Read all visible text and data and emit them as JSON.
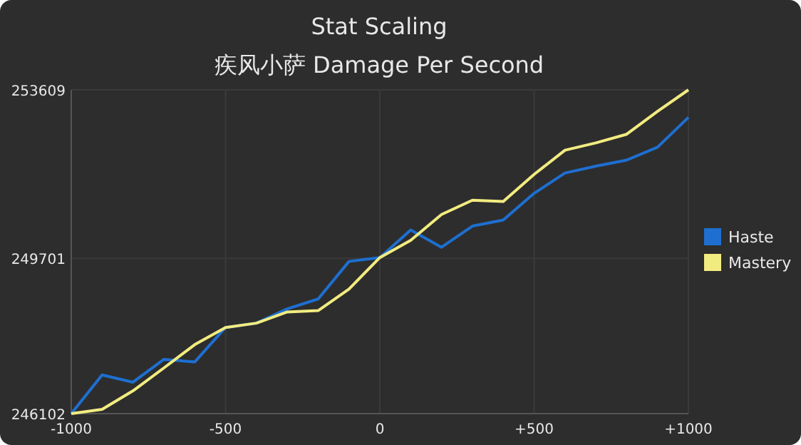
{
  "chart_data": {
    "type": "line",
    "title": "Stat Scaling",
    "subtitle": "疾风小萨 Damage Per Second",
    "x": [
      -1000,
      -900,
      -800,
      -700,
      -600,
      -500,
      -400,
      -300,
      -200,
      -100,
      0,
      100,
      200,
      300,
      400,
      500,
      600,
      700,
      800,
      900,
      1000
    ],
    "series": [
      {
        "name": "Haste",
        "color": "#1e6fd0",
        "values": [
          246102,
          247000,
          246830,
          247360,
          247300,
          248100,
          248200,
          248530,
          248760,
          249630,
          249720,
          250360,
          249960,
          250450,
          250590,
          251210,
          251680,
          251840,
          251980,
          252280,
          252970
        ]
      },
      {
        "name": "Mastery",
        "color": "#f2ec80",
        "values": [
          246102,
          246200,
          246630,
          247160,
          247700,
          248100,
          248200,
          248460,
          248490,
          248990,
          249720,
          250120,
          250720,
          251050,
          251020,
          251650,
          252210,
          252380,
          252580,
          253110,
          253609
        ]
      }
    ],
    "xlim": [
      -1000,
      1000
    ],
    "xticks": [
      -1000,
      -500,
      0,
      {
        "value": 500,
        "label": "+500"
      },
      {
        "value": 1000,
        "label": "+1000"
      }
    ],
    "ylim": [
      246102,
      253609
    ],
    "yticks": [
      246102,
      249701,
      253609
    ],
    "grid": true,
    "legend": "right",
    "marker": "none",
    "line_style": "solid"
  }
}
